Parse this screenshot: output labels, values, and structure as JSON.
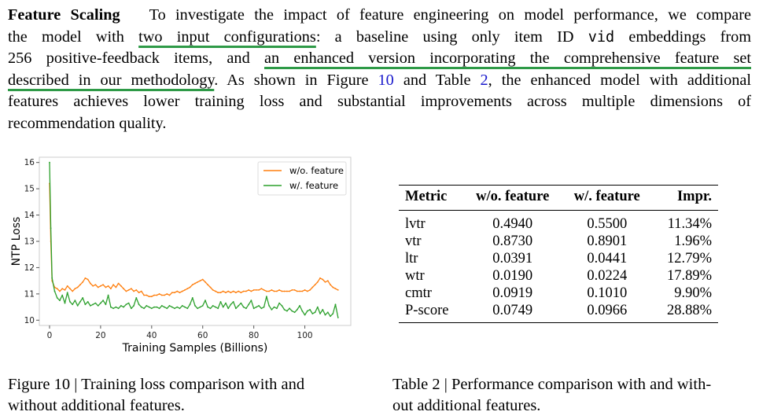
{
  "paragraph": {
    "heading": "Feature Scaling",
    "l1_a": "To investigate the impact of feature engineering on model performance, we compare",
    "l2_a": "the model with ",
    "l2_ul": "two input configurations",
    "l2_b": ": a baseline using only item ID ",
    "l2_code": "vid",
    "l2_c": " embeddings from",
    "l3_a": "256 positive-feedback items, and ",
    "l3_ul": "an enhanced version incorporating the comprehensive feature set",
    "l4_ul": "described in our methodology",
    "l4_a": ". As shown in Figure ",
    "l4_fig": "10",
    "l4_b": " and Table ",
    "l4_tab": "2",
    "l4_c": ", the enhanced model with additional",
    "l5": "features achieves lower training loss and substantial improvements across multiple dimensions of",
    "l6": "recommendation quality."
  },
  "figure": {
    "caption_line1": "Figure 10 | Training loss comparison with and",
    "caption_line2": "without additional features."
  },
  "chart_data": {
    "type": "line",
    "title": "",
    "xlabel": "Training Samples (Billions)",
    "ylabel": "NTP Loss",
    "xlim": [
      -4,
      118
    ],
    "ylim": [
      9.8,
      16.2
    ],
    "xticks": [
      0,
      20,
      40,
      60,
      80,
      100
    ],
    "yticks": [
      10,
      11,
      12,
      13,
      14,
      15,
      16
    ],
    "legend_position": "top-right",
    "series": [
      {
        "name": "w/o. feature",
        "color": "#ff7f0e",
        "x": [
          0,
          0.5,
          1,
          2,
          3,
          4,
          5,
          6,
          7,
          8,
          9,
          10,
          11,
          12,
          13,
          14,
          15,
          16,
          17,
          18,
          19,
          20,
          21,
          22,
          23,
          24,
          25,
          26,
          27,
          28,
          29,
          30,
          31,
          32,
          33,
          34,
          35,
          36,
          37,
          38,
          39,
          40,
          41,
          42,
          43,
          44,
          45,
          46,
          47,
          48,
          49,
          50,
          51,
          52,
          53,
          54,
          55,
          56,
          57,
          58,
          59,
          60,
          61,
          62,
          63,
          64,
          65,
          66,
          67,
          68,
          69,
          70,
          71,
          72,
          73,
          74,
          75,
          76,
          77,
          78,
          79,
          80,
          81,
          82,
          83,
          84,
          85,
          86,
          87,
          88,
          89,
          90,
          91,
          92,
          93,
          94,
          95,
          96,
          97,
          98,
          99,
          100,
          101,
          102,
          103,
          104,
          105,
          106,
          107,
          108,
          109,
          110,
          111,
          112,
          113
        ],
        "values": [
          15.2,
          13.0,
          11.5,
          11.25,
          11.2,
          11.1,
          11.2,
          11.15,
          11.3,
          11.2,
          11.1,
          11.2,
          11.25,
          11.35,
          11.45,
          11.6,
          11.55,
          11.4,
          11.3,
          11.35,
          11.25,
          11.3,
          11.35,
          11.25,
          11.3,
          11.2,
          11.35,
          11.25,
          11.4,
          11.3,
          11.2,
          11.1,
          11.15,
          11.2,
          11.1,
          11.15,
          11.05,
          11.1,
          10.95,
          10.95,
          10.9,
          10.9,
          10.95,
          10.95,
          11.0,
          10.95,
          10.95,
          11.0,
          10.95,
          11.05,
          11.05,
          11.1,
          11.05,
          11.1,
          11.15,
          11.2,
          11.25,
          11.35,
          11.4,
          11.45,
          11.5,
          11.55,
          11.45,
          11.35,
          11.25,
          11.15,
          11.1,
          11.05,
          11.05,
          11.1,
          11.05,
          11.1,
          11.05,
          11.1,
          11.05,
          11.1,
          11.05,
          11.1,
          11.1,
          11.15,
          11.1,
          11.15,
          11.15,
          11.15,
          11.2,
          11.15,
          11.1,
          11.1,
          11.15,
          11.1,
          11.1,
          11.15,
          11.1,
          11.1,
          11.1,
          11.1,
          11.15,
          11.15,
          11.1,
          11.1,
          11.1,
          11.15,
          11.1,
          11.15,
          11.25,
          11.35,
          11.45,
          11.6,
          11.55,
          11.45,
          11.5,
          11.35,
          11.25,
          11.2,
          11.15
        ]
      },
      {
        "name": "w/. feature",
        "color": "#2ca02c",
        "x": [
          0,
          0.5,
          1,
          2,
          3,
          4,
          5,
          6,
          7,
          8,
          9,
          10,
          11,
          12,
          13,
          14,
          15,
          16,
          17,
          18,
          19,
          20,
          21,
          22,
          23,
          24,
          25,
          26,
          27,
          28,
          29,
          30,
          31,
          32,
          33,
          34,
          35,
          36,
          37,
          38,
          39,
          40,
          41,
          42,
          43,
          44,
          45,
          46,
          47,
          48,
          49,
          50,
          51,
          52,
          53,
          54,
          55,
          56,
          57,
          58,
          59,
          60,
          61,
          62,
          63,
          64,
          65,
          66,
          67,
          68,
          69,
          70,
          71,
          72,
          73,
          74,
          75,
          76,
          77,
          78,
          79,
          80,
          81,
          82,
          83,
          84,
          85,
          86,
          87,
          88,
          89,
          90,
          91,
          92,
          93,
          94,
          95,
          96,
          97,
          98,
          99,
          100,
          101,
          102,
          103,
          104,
          105,
          106,
          107,
          108,
          109,
          110,
          111,
          112,
          113
        ],
        "values": [
          16.0,
          13.5,
          11.6,
          11.1,
          10.85,
          10.75,
          10.95,
          10.65,
          11.05,
          10.7,
          10.6,
          10.75,
          10.55,
          10.7,
          10.85,
          10.6,
          10.7,
          10.55,
          10.6,
          10.65,
          10.55,
          10.65,
          10.75,
          10.6,
          10.95,
          10.5,
          10.45,
          10.5,
          10.45,
          10.55,
          10.5,
          10.6,
          10.65,
          10.45,
          10.55,
          10.85,
          10.6,
          10.5,
          10.45,
          10.55,
          10.5,
          10.45,
          10.5,
          10.5,
          10.45,
          10.55,
          10.5,
          10.45,
          10.55,
          10.5,
          10.45,
          10.5,
          10.45,
          10.55,
          10.5,
          10.45,
          10.6,
          10.85,
          10.55,
          10.45,
          10.5,
          10.55,
          10.75,
          10.5,
          10.45,
          10.55,
          10.5,
          10.45,
          10.7,
          10.5,
          10.65,
          10.45,
          10.6,
          10.7,
          10.45,
          10.55,
          10.65,
          10.5,
          10.45,
          10.6,
          10.75,
          10.45,
          10.5,
          10.55,
          10.45,
          10.5,
          10.9,
          10.55,
          10.4,
          10.5,
          10.45,
          10.65,
          10.55,
          10.4,
          10.35,
          10.45,
          10.35,
          10.3,
          10.4,
          10.55,
          10.35,
          10.2,
          10.35,
          10.4,
          10.25,
          10.3,
          10.5,
          10.25,
          10.4,
          10.2,
          10.3,
          10.15,
          10.25,
          10.6,
          10.1
        ]
      }
    ]
  },
  "table": {
    "caption_line1": "Table 2 | Performance comparison with and with-",
    "caption_line2": "out additional features.",
    "headers": [
      "Metric",
      "w/o. feature",
      "w/. feature",
      "Impr."
    ],
    "rows": [
      [
        "lvtr",
        "0.4940",
        "0.5500",
        "11.34%"
      ],
      [
        "vtr",
        "0.8730",
        "0.8901",
        "1.96%"
      ],
      [
        "ltr",
        "0.0391",
        "0.0441",
        "12.79%"
      ],
      [
        "wtr",
        "0.0190",
        "0.0224",
        "17.89%"
      ],
      [
        "cmtr",
        "0.0919",
        "0.1010",
        "9.90%"
      ],
      [
        "P-score",
        "0.0749",
        "0.0966",
        "28.88%"
      ]
    ]
  }
}
